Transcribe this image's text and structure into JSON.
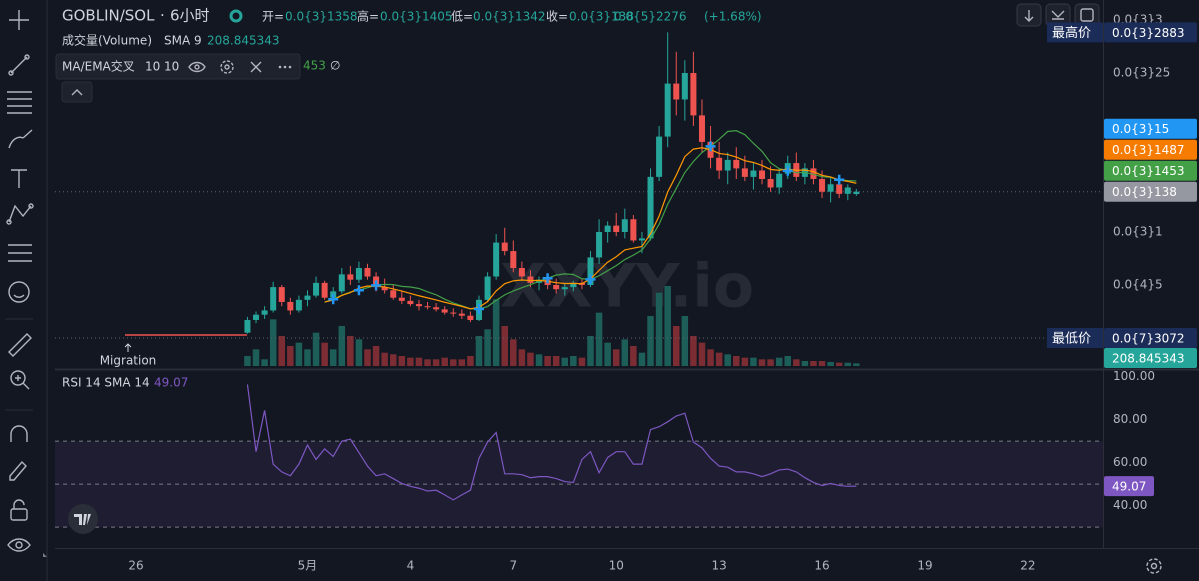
{
  "header": {
    "symbol": "GOBLIN/SOL",
    "separator": "·",
    "interval": "6小时",
    "open_key": "开=",
    "open": "0.0{3}1358",
    "high_key": "高=",
    "high": "0.0{3}1405",
    "low_key": "低=",
    "low": "0.0{3}1342",
    "close_key": "收=",
    "close": "0.0{3}138",
    "change": "0.0{5}2276",
    "change_pct": "(+1.68%)"
  },
  "chart_data": [
    {
      "type": "candlestick",
      "x": [
        3.25,
        3.5,
        3.75,
        4,
        4.25,
        4.5,
        4.75,
        5,
        5.25,
        5.5,
        5.75,
        6,
        6.25,
        6.5,
        6.75,
        7,
        7.25,
        7.5,
        7.75,
        8,
        8.25,
        8.5,
        8.75,
        9,
        9.25,
        9.5,
        9.75,
        10,
        10.25,
        10.5,
        10.75,
        11,
        11.25,
        11.5,
        11.75,
        12,
        12.25,
        12.5,
        12.75,
        13,
        13.25,
        13.5,
        13.75,
        14,
        14.25,
        14.5,
        14.75,
        15,
        15.25,
        15.5,
        15.75,
        16,
        16.25,
        16.5,
        16.75,
        17,
        17.25,
        17.5,
        17.75,
        18,
        18.25,
        18.5,
        18.75,
        19,
        19.25,
        19.5,
        19.75,
        20,
        20.25,
        20.5,
        20.75,
        21
      ],
      "ohlc": [
        [
          5e-06,
          2e-05,
          4e-06,
          1.7e-05
        ],
        [
          1.7e-05,
          2.5e-05,
          1.4e-05,
          2.2e-05
        ],
        [
          2.2e-05,
          3e-05,
          1.8e-05,
          2.6e-05
        ],
        [
          2.6e-05,
          5.3e-05,
          2.4e-05,
          4.8e-05
        ],
        [
          4.8e-05,
          5e-05,
          3e-05,
          3.4e-05
        ],
        [
          3.4e-05,
          3.8e-05,
          2.2e-05,
          2.6e-05
        ],
        [
          2.6e-05,
          4e-05,
          2.4e-05,
          3.6e-05
        ],
        [
          3.6e-05,
          4.5e-05,
          3e-05,
          4e-05
        ],
        [
          4e-05,
          5.8e-05,
          3.8e-05,
          5.2e-05
        ],
        [
          5.2e-05,
          5.4e-05,
          3.6e-05,
          3.8e-05
        ],
        [
          3.8e-05,
          4.8e-05,
          3.4e-05,
          4.4e-05
        ],
        [
          4.4e-05,
          6.6e-05,
          4.2e-05,
          6e-05
        ],
        [
          6e-05,
          6.8e-05,
          5e-05,
          5.5e-05
        ],
        [
          5.5e-05,
          7.2e-05,
          5.2e-05,
          6.6e-05
        ],
        [
          6.6e-05,
          7e-05,
          5.5e-05,
          5.8e-05
        ],
        [
          5.8e-05,
          6.2e-05,
          4.4e-05,
          4.8e-05
        ],
        [
          4.8e-05,
          5.6e-05,
          4.2e-05,
          4.5e-05
        ],
        [
          4.5e-05,
          5e-05,
          3.6e-05,
          3.8e-05
        ],
        [
          3.8e-05,
          4.4e-05,
          3.2e-05,
          3.5e-05
        ],
        [
          3.5e-05,
          4e-05,
          3e-05,
          3.2e-05
        ],
        [
          3.2e-05,
          3.6e-05,
          2.6e-05,
          3e-05
        ],
        [
          3e-05,
          3.4e-05,
          2.7e-05,
          2.9e-05
        ],
        [
          2.9e-05,
          3.3e-05,
          2.5e-05,
          2.7e-05
        ],
        [
          2.7e-05,
          3e-05,
          2.2e-05,
          2.4e-05
        ],
        [
          2.4e-05,
          2.8e-05,
          2e-05,
          2.3e-05
        ],
        [
          2.3e-05,
          2.7e-05,
          1.8e-05,
          2.1e-05
        ],
        [
          2.1e-05,
          2.5e-05,
          1.5e-05,
          1.7e-05
        ],
        [
          1.7e-05,
          4e-05,
          1.6e-05,
          3.6e-05
        ],
        [
          3.6e-05,
          6.2e-05,
          3.4e-05,
          5.8e-05
        ],
        [
          5.8e-05,
          9.8e-05,
          5.5e-05,
          9e-05
        ],
        [
          9e-05,
          0.000104,
          7.8e-05,
          8.2e-05
        ],
        [
          8.2e-05,
          9.2e-05,
          6.2e-05,
          6.6e-05
        ],
        [
          6.6e-05,
          7.2e-05,
          5.4e-05,
          5.8e-05
        ],
        [
          5.8e-05,
          6.4e-05,
          4.8e-05,
          5.2e-05
        ],
        [
          5.2e-05,
          5.8e-05,
          4.5e-05,
          5.5e-05
        ],
        [
          5.5e-05,
          6e-05,
          4.6e-05,
          5e-05
        ],
        [
          5e-05,
          5.6e-05,
          4.2e-05,
          4.6e-05
        ],
        [
          4.6e-05,
          5.2e-05,
          4e-05,
          4.8e-05
        ],
        [
          4.8e-05,
          5.4e-05,
          4.4e-05,
          5.2e-05
        ],
        [
          5.2e-05,
          5.6e-05,
          4.6e-05,
          5e-05
        ],
        [
          5e-05,
          8.2e-05,
          4.8e-05,
          7.6e-05
        ],
        [
          7.6e-05,
          0.000112,
          7e-05,
          0.0001
        ],
        [
          0.0001,
          0.00011,
          9e-05,
          0.000106
        ],
        [
          0.000106,
          0.000118,
          9.6e-05,
          0.0001
        ],
        [
          0.0001,
          0.000122,
          9.4e-05,
          0.000112
        ],
        [
          0.000112,
          0.000116,
          9e-05,
          9.2e-05
        ],
        [
          9.2e-05,
          0.0001,
          8e-05,
          9.4e-05
        ],
        [
          9.4e-05,
          0.00016,
          9.2e-05,
          0.000152
        ],
        [
          0.000152,
          0.0002,
          0.000148,
          0.00019
        ],
        [
          0.00019,
          0.0002883,
          0.00018,
          0.00024
        ],
        [
          0.00024,
          0.00027,
          0.00021,
          0.000225
        ],
        [
          0.000225,
          0.000262,
          0.000205,
          0.00025
        ],
        [
          0.00025,
          0.00027,
          0.0002,
          0.00021
        ],
        [
          0.00021,
          0.000225,
          0.000175,
          0.000185
        ],
        [
          0.000185,
          0.0002,
          0.00016,
          0.00017
        ],
        [
          0.00017,
          0.000185,
          0.00015,
          0.000158
        ],
        [
          0.000158,
          0.000175,
          0.000145,
          0.000168
        ],
        [
          0.000168,
          0.00018,
          0.00015,
          0.00016
        ],
        [
          0.00016,
          0.000172,
          0.000148,
          0.000152
        ],
        [
          0.000152,
          0.000165,
          0.00014,
          0.000158
        ],
        [
          0.000158,
          0.000168,
          0.000145,
          0.00015
        ],
        [
          0.00015,
          0.000162,
          0.000138,
          0.000142
        ],
        [
          0.000142,
          0.00016,
          0.000136,
          0.000155
        ],
        [
          0.000155,
          0.000172,
          0.00015,
          0.000165
        ],
        [
          0.000165,
          0.000175,
          0.000148,
          0.000152
        ],
        [
          0.000152,
          0.000165,
          0.000145,
          0.00016
        ],
        [
          0.00016,
          0.000168,
          0.000145,
          0.00015
        ],
        [
          0.00015,
          0.000158,
          0.000132,
          0.000138
        ],
        [
          0.000138,
          0.000152,
          0.000128,
          0.000145
        ],
        [
          0.000145,
          0.00015,
          0.000132,
          0.000136
        ],
        [
          0.000136,
          0.000145,
          0.00013,
          0.000142
        ],
        [
          0.0001358,
          0.0001405,
          0.0001342,
          0.000138
        ]
      ],
      "volume": [
        300,
        500,
        200,
        1400,
        900,
        600,
        700,
        500,
        1000,
        700,
        500,
        1200,
        900,
        800,
        500,
        600,
        400,
        350,
        300,
        250,
        250,
        200,
        200,
        250,
        200,
        200,
        300,
        900,
        1100,
        2000,
        1200,
        800,
        500,
        400,
        350,
        300,
        300,
        250,
        300,
        250,
        900,
        1600,
        700,
        500,
        800,
        600,
        400,
        1500,
        2200,
        2400,
        1200,
        1500,
        900,
        700,
        500,
        400,
        350,
        300,
        250,
        250,
        200,
        200,
        250,
        300,
        200,
        150,
        150,
        150,
        120,
        100,
        100,
        80
      ],
      "up_color": "#26a69a",
      "down_color": "#ef5350",
      "volume_up_color": "#1d5e58",
      "volume_down_color": "#7b2d33",
      "xlim": [
        -2.36,
        28.19
      ],
      "xticks": [
        {
          "value": 0,
          "label": "26"
        },
        {
          "value": 5,
          "label": "5月"
        },
        {
          "value": 8,
          "label": "4"
        },
        {
          "value": 11,
          "label": "7"
        },
        {
          "value": 14,
          "label": "10"
        },
        {
          "value": 17,
          "label": "13"
        },
        {
          "value": 20,
          "label": "16"
        },
        {
          "value": 23,
          "label": "19"
        },
        {
          "value": 26,
          "label": "22"
        }
      ],
      "ylim": [
        -2.83e-05,
        0.0003113
      ],
      "yticks": [
        {
          "value": 5e-05,
          "label": "0.0{4}5"
        },
        {
          "value": 0.0001,
          "label": "0.0{3}1"
        },
        {
          "value": 0.00025,
          "label": "0.0{3}25"
        },
        {
          "value": 0.0003,
          "label": "0.0{3}3"
        }
      ],
      "volume_legend": {
        "name": "成交量(Volume)",
        "sma": "SMA 9",
        "value": 208.845343,
        "color": "#26a69a"
      },
      "indicator": {
        "name": "MA/EMA交叉",
        "ma_length": 10,
        "ema_length": 10,
        "ma_color": "#43a047",
        "ema_color": "#ff9800",
        "cross_color": "#2196f3",
        "hidden_value": "453",
        "hidden_symbol": "∅"
      },
      "price_labels": [
        {
          "title": "最高价",
          "value": 0.0002883,
          "label": "0.0{3}2883",
          "color": "#1c2c58"
        },
        {
          "value": 0.00015,
          "label": "0.0{3}15",
          "color": "#2196f3"
        },
        {
          "value": 0.0001487,
          "label": "0.0{3}1487",
          "color": "#f57c00"
        },
        {
          "value": 0.0001453,
          "label": "0.0{3}1453",
          "color": "#43a047"
        },
        {
          "value": 0.000138,
          "label": "0.0{3}138",
          "color": "#9598a1",
          "line": true
        },
        {
          "title": "最低价",
          "value": 3.072e-08,
          "label": "0.0{7}3072",
          "color": "#1c2c58",
          "line": true
        }
      ],
      "annotation": "Migration",
      "watermark": "XXYY.io"
    },
    {
      "type": "line",
      "title": "RSI 14 SMA 14",
      "color": "#7e57c2",
      "values": [
        96.4,
        65.1,
        84.3,
        59.3,
        55.7,
        53.9,
        59.3,
        68.2,
        61.5,
        66.4,
        62.9,
        70.0,
        70.9,
        64.7,
        58.4,
        53.9,
        54.8,
        52.6,
        50.3,
        49.0,
        48.1,
        46.8,
        47.2,
        45.0,
        42.7,
        45.0,
        47.2,
        62.0,
        69.6,
        74.0,
        54.8,
        54.8,
        54.4,
        53.0,
        53.5,
        53.5,
        52.6,
        51.2,
        50.8,
        61.5,
        65.1,
        55.3,
        62.4,
        65.1,
        65.1,
        59.3,
        59.3,
        75.4,
        76.7,
        79.0,
        81.7,
        83.0,
        69.6,
        66.9,
        62.0,
        58.4,
        57.9,
        55.7,
        55.7,
        54.8,
        53.5,
        54.8,
        56.6,
        57.0,
        55.7,
        53.0,
        50.8,
        49.4,
        50.3,
        49.4,
        49.0,
        49.07
      ],
      "ylim": [
        20.3,
        103.1
      ],
      "yticks": [
        {
          "value": 40,
          "label": "40.00"
        },
        {
          "value": 60,
          "label": "60.00"
        },
        {
          "value": 80,
          "label": "80.00"
        },
        {
          "value": 100,
          "label": "100.00"
        }
      ],
      "bands": [
        70,
        50,
        30
      ]
    }
  ]
}
